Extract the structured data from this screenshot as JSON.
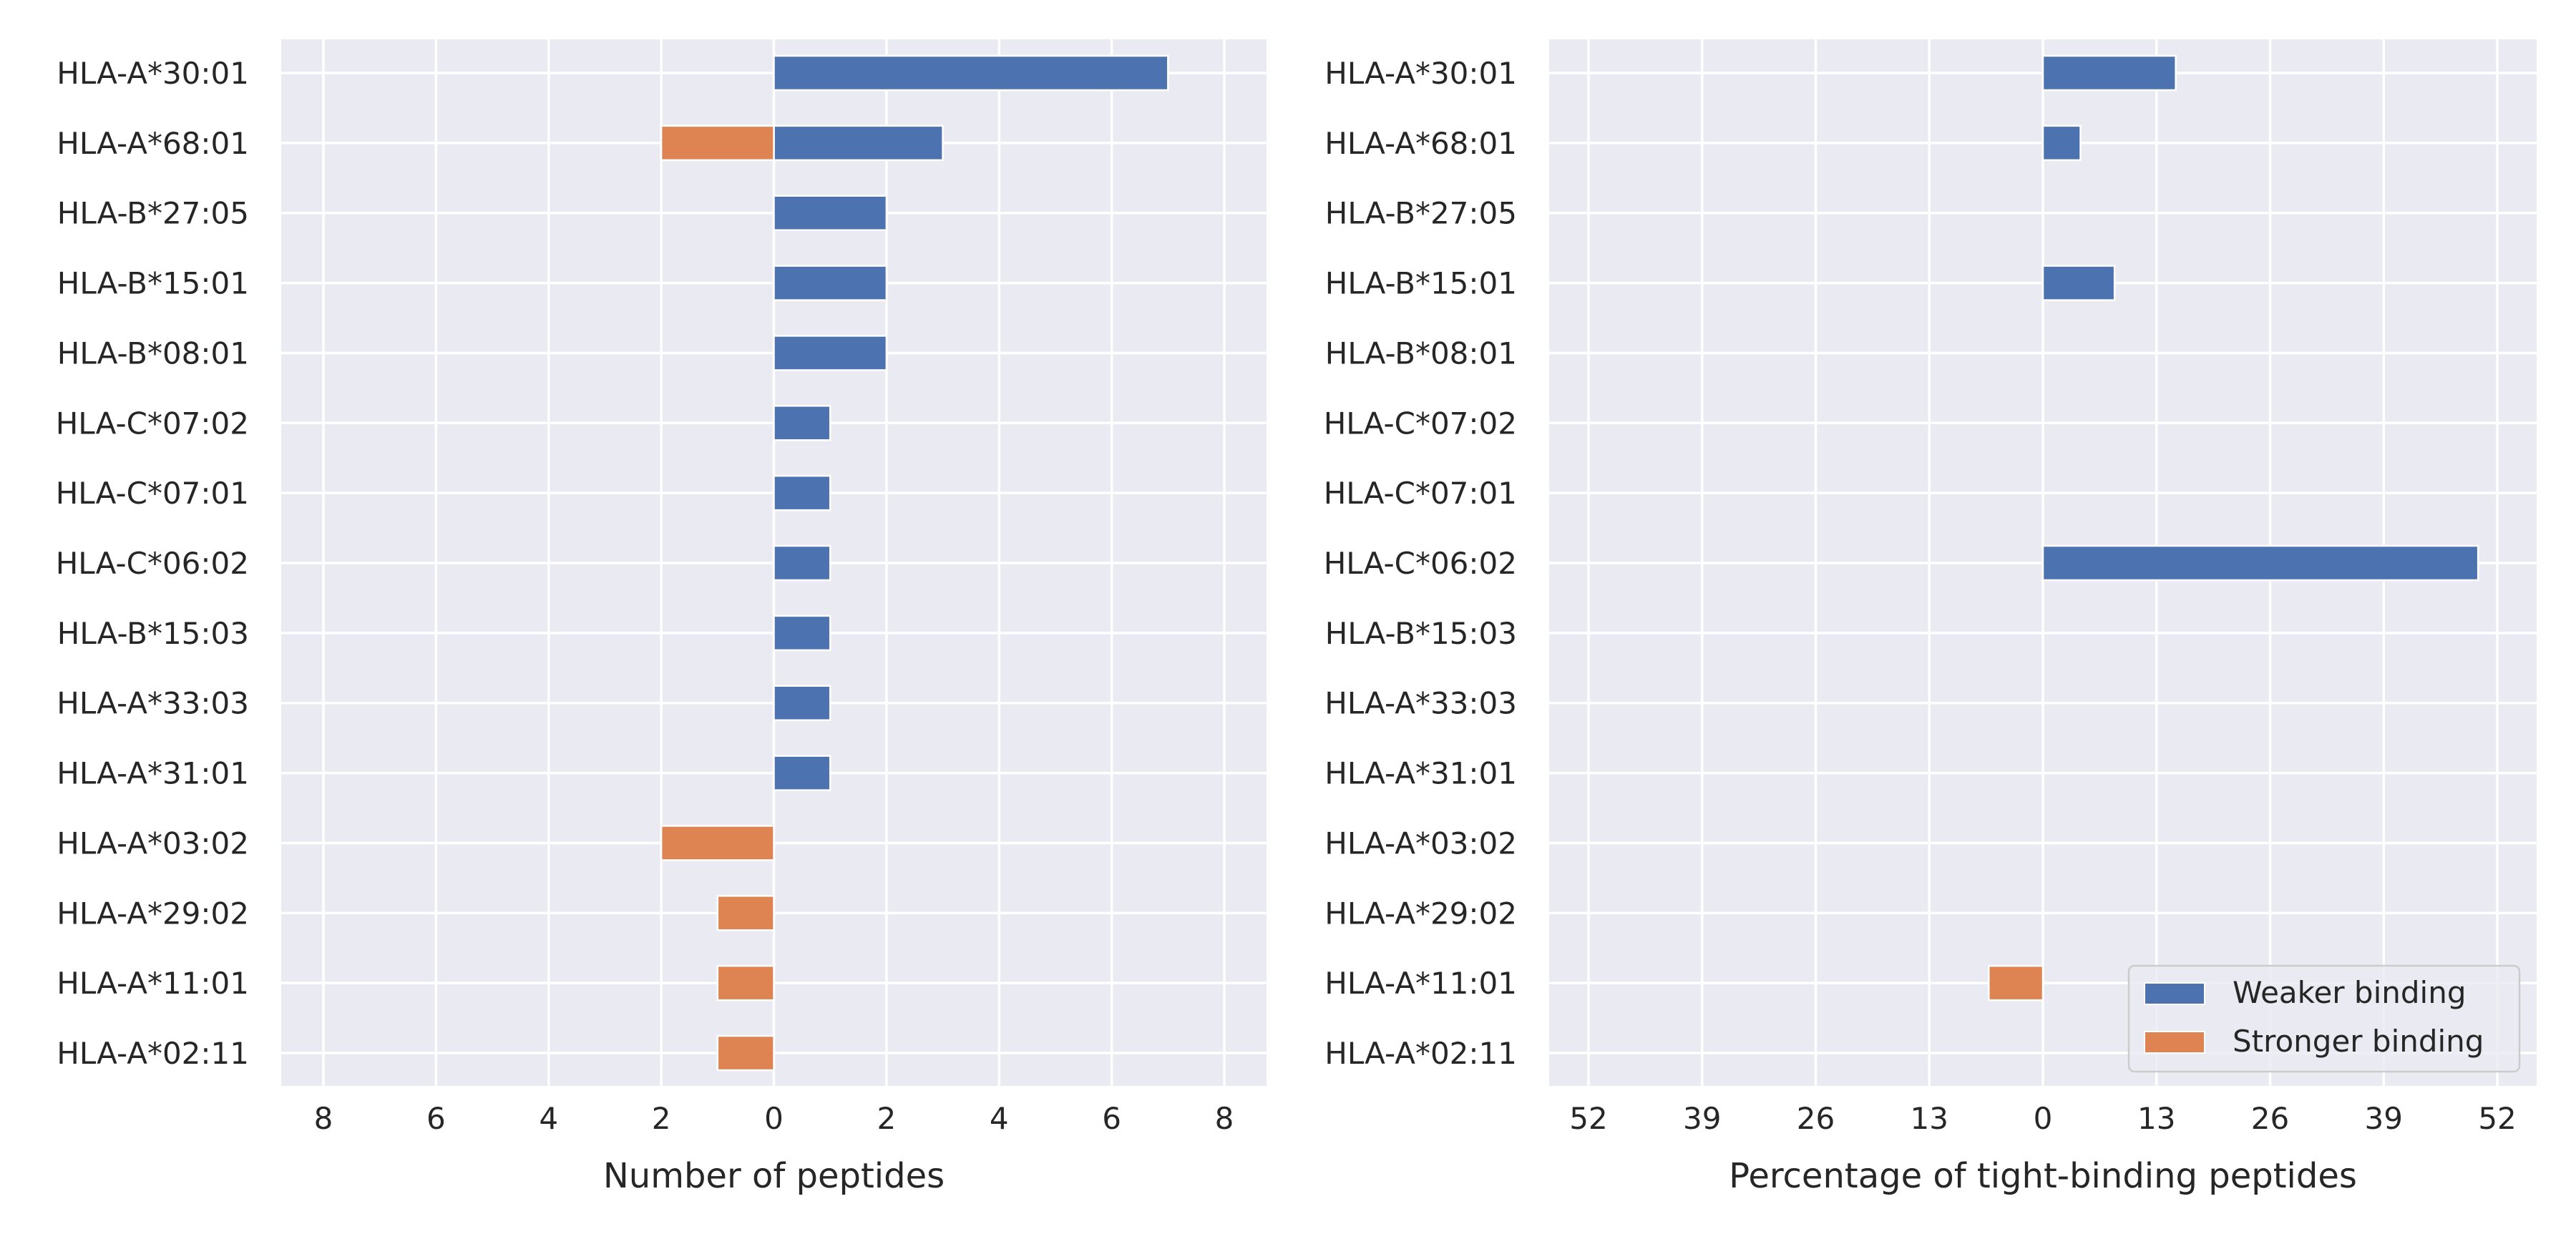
{
  "colors": {
    "weaker": "#4c72b0",
    "stronger": "#dd8452"
  },
  "legend": {
    "weaker": "Weaker binding",
    "stronger": "Stronger binding"
  },
  "chart_data": [
    {
      "type": "bar",
      "orientation": "horizontal",
      "xlabel": "Number of peptides",
      "xlim": [
        -8.75,
        8.75
      ],
      "xticks": [
        -8,
        -6,
        -4,
        -2,
        0,
        2,
        4,
        6,
        8
      ],
      "xtick_labels": [
        "8",
        "6",
        "4",
        "2",
        "0",
        "2",
        "4",
        "6",
        "8"
      ],
      "grid": true,
      "categories": [
        "HLA-A*30:01",
        "HLA-A*68:01",
        "HLA-B*27:05",
        "HLA-B*15:01",
        "HLA-B*08:01",
        "HLA-C*07:02",
        "HLA-C*07:01",
        "HLA-C*06:02",
        "HLA-B*15:03",
        "HLA-A*33:03",
        "HLA-A*31:01",
        "HLA-A*03:02",
        "HLA-A*29:02",
        "HLA-A*11:01",
        "HLA-A*02:11"
      ],
      "series": [
        {
          "name": "Weaker binding",
          "values": [
            7,
            3,
            2,
            2,
            2,
            1,
            1,
            1,
            1,
            1,
            1,
            0,
            0,
            0,
            0
          ]
        },
        {
          "name": "Stronger binding",
          "values": [
            0,
            -2,
            0,
            0,
            0,
            0,
            0,
            0,
            0,
            0,
            0,
            -2,
            -1,
            -1,
            -1
          ]
        }
      ]
    },
    {
      "type": "bar",
      "orientation": "horizontal",
      "xlabel": "Percentage of tight-binding peptides",
      "xlim": [
        -56.5,
        56.5
      ],
      "xticks": [
        -52,
        -39,
        -26,
        -13,
        0,
        13,
        26,
        39,
        52
      ],
      "xtick_labels": [
        "52",
        "39",
        "26",
        "13",
        "0",
        "13",
        "26",
        "39",
        "52"
      ],
      "grid": true,
      "legend_position": "lower-right",
      "categories": [
        "HLA-A*30:01",
        "HLA-A*68:01",
        "HLA-B*27:05",
        "HLA-B*15:01",
        "HLA-B*08:01",
        "HLA-C*07:02",
        "HLA-C*07:01",
        "HLA-C*06:02",
        "HLA-B*15:03",
        "HLA-A*33:03",
        "HLA-A*31:01",
        "HLA-A*03:02",
        "HLA-A*29:02",
        "HLA-A*11:01",
        "HLA-A*02:11"
      ],
      "series": [
        {
          "name": "Weaker binding",
          "values": [
            15.2,
            4.3,
            0,
            8.2,
            0,
            0,
            0,
            49.8,
            0,
            0,
            0,
            0,
            0,
            0,
            0
          ]
        },
        {
          "name": "Stronger binding",
          "values": [
            0,
            0,
            0,
            0,
            0,
            0,
            0,
            0,
            0,
            0,
            0,
            0,
            0,
            -6.2,
            0
          ]
        }
      ]
    }
  ]
}
